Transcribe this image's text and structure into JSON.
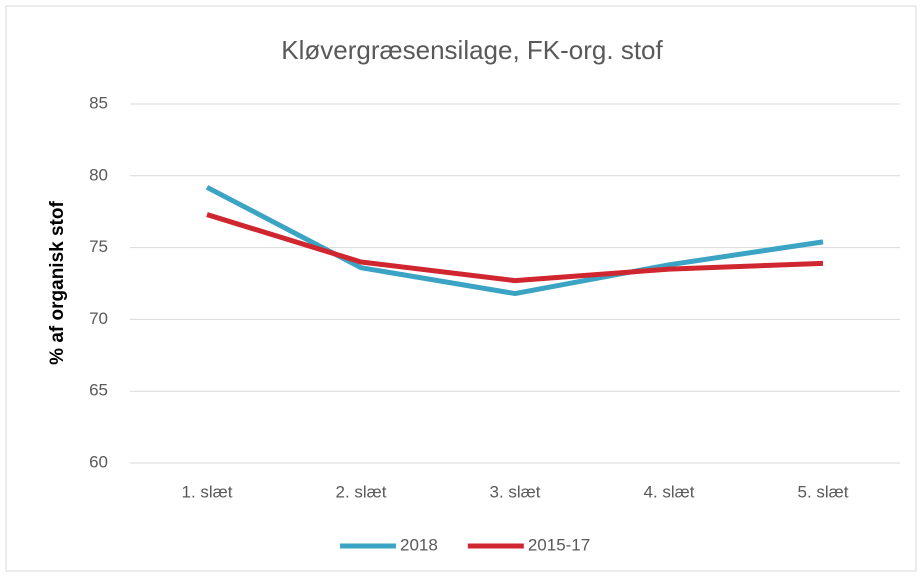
{
  "chart_data": {
    "type": "line",
    "title": "Kløvergræsensilage, FK-org. stof",
    "y_label": "% af organisk stof",
    "categories": [
      "1. slæt",
      "2. slæt",
      "3. slæt",
      "4. slæt",
      "5. slæt"
    ],
    "series": [
      {
        "name": "2018",
        "color": "#3ba3c3",
        "values": [
          79.2,
          73.6,
          71.8,
          73.8,
          75.4
        ]
      },
      {
        "name": "2015-17",
        "color": "#d0262f",
        "values": [
          77.3,
          74.0,
          72.7,
          73.5,
          73.9
        ]
      }
    ],
    "ylim": [
      60,
      85
    ],
    "yticks": [
      60,
      65,
      70,
      75,
      80,
      85
    ],
    "grid": true,
    "legend": "bottom"
  }
}
